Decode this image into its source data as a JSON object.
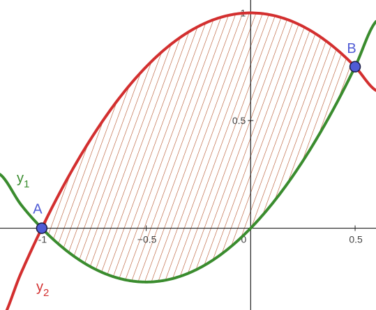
{
  "chart_data": {
    "type": "line",
    "title": "",
    "xlabel": "",
    "ylabel": "",
    "xlim": [
      -1.2,
      0.6
    ],
    "ylim": [
      -0.38,
      1.06
    ],
    "grid": false,
    "x_ticks": [
      {
        "value": -1,
        "label": "-1"
      },
      {
        "value": -0.5,
        "label": "−0.5"
      },
      {
        "value": 0,
        "label": "0"
      },
      {
        "value": 0.5,
        "label": "0.5"
      }
    ],
    "y_ticks": [
      {
        "value": 0.5,
        "label": "0.5"
      },
      {
        "value": 1,
        "label": "1"
      }
    ],
    "series": [
      {
        "name": "y1",
        "label_main": "y",
        "label_sub": "1",
        "color": "#3a8c2e",
        "x": [
          -1.2,
          -1.1,
          -1,
          -0.9,
          -0.8,
          -0.7,
          -0.6,
          -0.5,
          -0.4,
          -0.3,
          -0.2,
          -0.1,
          0,
          0.1,
          0.2,
          0.3,
          0.4,
          0.5,
          0.6
        ],
        "y": [
          0.25,
          0.11,
          0,
          -0.09,
          -0.16,
          -0.21,
          -0.24,
          -0.25,
          -0.24,
          -0.21,
          -0.16,
          -0.09,
          0,
          0.11,
          0.24,
          0.39,
          0.56,
          0.75,
          0.96
        ]
      },
      {
        "name": "y2",
        "label_main": "y",
        "label_sub": "2",
        "color": "#d32f2f",
        "x": [
          -1.2,
          -1.1,
          -1,
          -0.9,
          -0.8,
          -0.7,
          -0.6,
          -0.5,
          -0.4,
          -0.3,
          -0.2,
          -0.1,
          0,
          0.1,
          0.2,
          0.3,
          0.4,
          0.5,
          0.6
        ],
        "y": [
          -0.44,
          -0.21,
          0,
          0.19,
          0.36,
          0.51,
          0.64,
          0.75,
          0.84,
          0.91,
          0.96,
          0.99,
          1,
          0.99,
          0.96,
          0.91,
          0.84,
          0.75,
          0.64
        ]
      }
    ],
    "shaded_region": {
      "between": [
        "y1",
        "y2"
      ],
      "x_from": -1,
      "x_to": 0.5,
      "pattern": "hatched",
      "color": "#b5532a"
    },
    "points": [
      {
        "name": "A",
        "x": -1,
        "y": 0,
        "color": "#4f5bd5"
      },
      {
        "name": "B",
        "x": 0.5,
        "y": 0.75,
        "color": "#4f5bd5"
      }
    ]
  }
}
